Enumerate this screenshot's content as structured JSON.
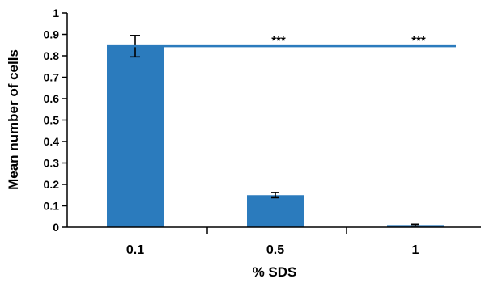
{
  "chart_data": {
    "type": "bar",
    "categories": [
      "0.1",
      "0.5",
      "1"
    ],
    "values": [
      0.845,
      0.15,
      0.01
    ],
    "errors": [
      0.05,
      0.012,
      0.004
    ],
    "bar_color": "#2b7bbd",
    "xlabel": "% SDS",
    "ylabel": "Mean number of cells",
    "ylim": [
      0,
      1
    ],
    "yticks": [
      "0",
      "0.1",
      "0.2",
      "0.3",
      "0.4",
      "0.5",
      "0.6",
      "0.7",
      "0.8",
      "0.9",
      "1"
    ],
    "grid": false,
    "significance_line": {
      "y": 0.845,
      "from_category": "0.1",
      "to_category": "1",
      "color": "#2b7bbd"
    },
    "annotations": [
      {
        "category": "0.5",
        "text": "***"
      },
      {
        "category": "1",
        "text": "***"
      }
    ]
  }
}
